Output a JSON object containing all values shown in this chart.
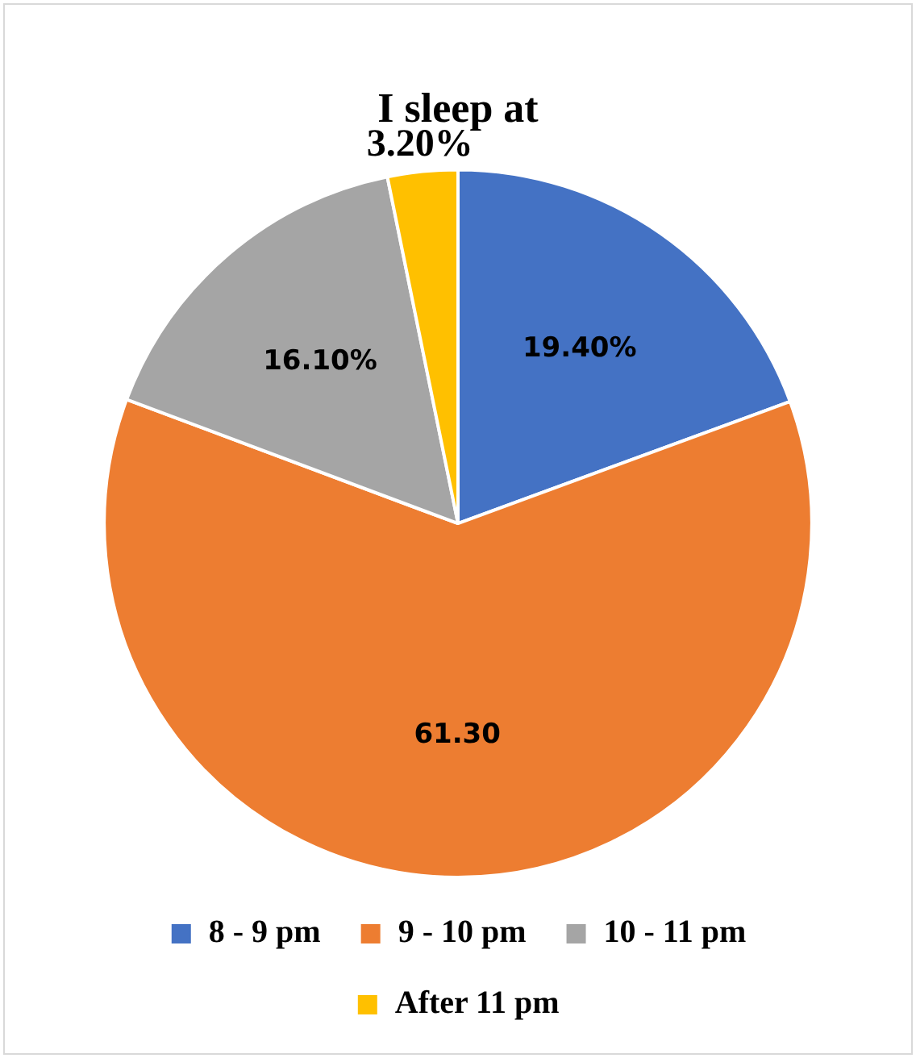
{
  "chart_data": {
    "type": "pie",
    "title": "I sleep at",
    "categories": [
      "8 - 9 pm",
      "9 - 10 pm",
      "10 - 11 pm",
      "After 11 pm"
    ],
    "values": [
      19.4,
      61.3,
      16.1,
      3.2
    ],
    "value_labels": [
      "19.40%",
      "61.30",
      "16.10%",
      "3.20%"
    ],
    "colors": [
      "#4472c4",
      "#ed7d31",
      "#a5a5a5",
      "#ffc000"
    ],
    "legend": "bottom"
  }
}
